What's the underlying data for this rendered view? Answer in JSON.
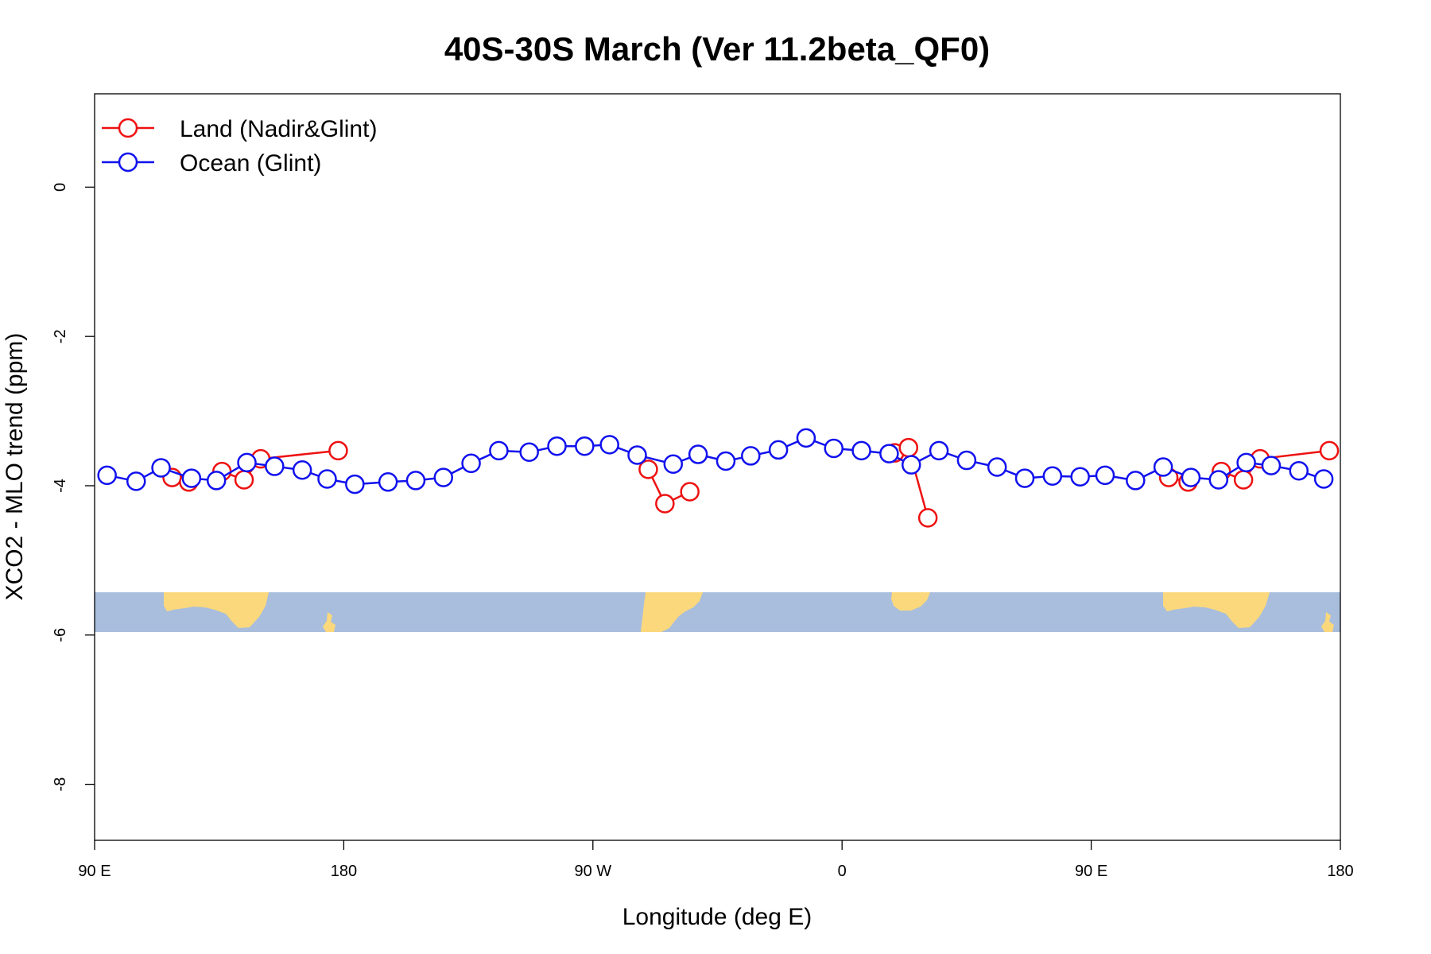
{
  "chart_data": {
    "type": "line",
    "title": "40S-30S March (Ver 11.2beta_QF0)",
    "xlabel": "Longitude (deg E)",
    "ylabel": "XCO2 - MLO trend (ppm)",
    "xlim": [
      90,
      540
    ],
    "ylim": [
      -8.75,
      1.25
    ],
    "x_ticks": [
      {
        "value": 90,
        "label": "90 E"
      },
      {
        "value": 180,
        "label": "180"
      },
      {
        "value": 270,
        "label": "90 W"
      },
      {
        "value": 360,
        "label": "0"
      },
      {
        "value": 450,
        "label": "90 E"
      },
      {
        "value": 540,
        "label": "180"
      }
    ],
    "y_ticks": [
      {
        "value": 0,
        "label": "0"
      },
      {
        "value": -2,
        "label": "-2"
      },
      {
        "value": -4,
        "label": "-4"
      },
      {
        "value": -6,
        "label": "-6"
      },
      {
        "value": -8,
        "label": "-8"
      }
    ],
    "legend_position": "top-left",
    "map_band": {
      "y_top": -5.43,
      "y_bottom": -5.98,
      "ocean_color": "#a8bedc",
      "land_color": "#fcd87c"
    },
    "series": [
      {
        "name": "Land (Nadir&Glint)",
        "color": "#ee1111",
        "segments": [
          [
            [
              118,
              -3.89
            ],
            [
              124,
              -3.95
            ]
          ],
          [
            [
              136,
              -3.81
            ],
            [
              144,
              -3.92
            ],
            [
              150,
              -3.64
            ],
            [
              178,
              -3.53
            ]
          ],
          [
            [
              290,
              -3.78
            ],
            [
              296,
              -4.24
            ],
            [
              305,
              -4.08
            ]
          ],
          [
            [
              379,
              -3.56
            ],
            [
              384,
              -3.49
            ],
            [
              391,
              -4.43
            ]
          ],
          [
            [
              478,
              -3.89
            ],
            [
              485,
              -3.95
            ]
          ],
          [
            [
              497,
              -3.81
            ],
            [
              505,
              -3.92
            ],
            [
              511,
              -3.64
            ],
            [
              536,
              -3.53
            ]
          ]
        ]
      },
      {
        "name": "Ocean (Glint)",
        "color": "#1111ee",
        "segments": [
          [
            [
              94.5,
              -3.86
            ],
            [
              105,
              -3.94
            ],
            [
              114,
              -3.76
            ],
            [
              125,
              -3.9
            ],
            [
              134,
              -3.93
            ],
            [
              145,
              -3.69
            ],
            [
              155,
              -3.74
            ],
            [
              165,
              -3.79
            ],
            [
              174,
              -3.91
            ],
            [
              184,
              -3.98
            ],
            [
              196,
              -3.95
            ],
            [
              206,
              -3.93
            ],
            [
              216,
              -3.89
            ],
            [
              226,
              -3.7
            ],
            [
              236,
              -3.53
            ],
            [
              247,
              -3.55
            ],
            [
              257,
              -3.47
            ],
            [
              267,
              -3.47
            ],
            [
              276,
              -3.45
            ],
            [
              286,
              -3.59
            ],
            [
              299,
              -3.71
            ],
            [
              308,
              -3.58
            ],
            [
              318,
              -3.67
            ],
            [
              327,
              -3.6
            ],
            [
              337,
              -3.52
            ],
            [
              347,
              -3.36
            ],
            [
              357,
              -3.5
            ],
            [
              367,
              -3.53
            ],
            [
              377,
              -3.57
            ],
            [
              385,
              -3.72
            ],
            [
              395,
              -3.53
            ],
            [
              405,
              -3.66
            ],
            [
              416,
              -3.75
            ],
            [
              426,
              -3.9
            ],
            [
              436,
              -3.87
            ],
            [
              446,
              -3.88
            ],
            [
              455,
              -3.86
            ],
            [
              466,
              -3.93
            ],
            [
              476,
              -3.75
            ],
            [
              486,
              -3.89
            ],
            [
              496,
              -3.92
            ],
            [
              506,
              -3.69
            ],
            [
              515,
              -3.73
            ],
            [
              525,
              -3.8
            ],
            [
              534,
              -3.91
            ]
          ]
        ]
      }
    ]
  }
}
